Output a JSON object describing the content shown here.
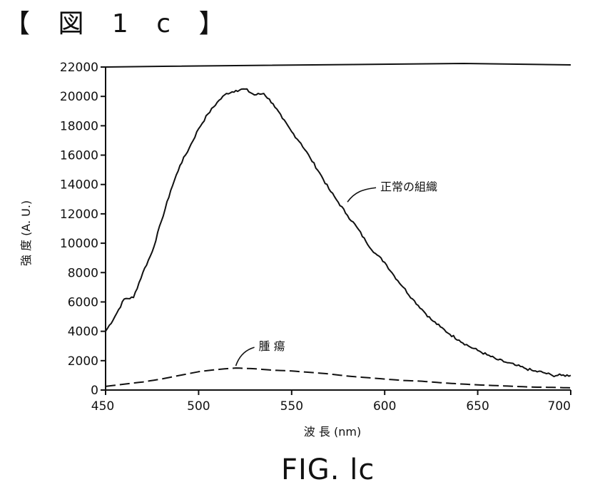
{
  "figure_heading": "【 図 1 c 】",
  "figure_caption": "FIG. lc",
  "chart_data": {
    "type": "line",
    "xlabel": "波 長 (nm)",
    "ylabel": "強 度 (A. U.)",
    "xlim": [
      450,
      700
    ],
    "ylim": [
      0,
      22000
    ],
    "x_ticks": [
      450,
      500,
      550,
      600,
      650,
      700
    ],
    "y_ticks": [
      0,
      2000,
      4000,
      6000,
      8000,
      10000,
      12000,
      14000,
      16000,
      18000,
      20000,
      22000
    ],
    "grid": false,
    "legend": "none",
    "series": [
      {
        "name": "正常の組織",
        "style": "solid",
        "x": [
          450,
          455,
          460,
          465,
          470,
          475,
          480,
          485,
          490,
          495,
          500,
          505,
          510,
          515,
          520,
          525,
          530,
          535,
          540,
          545,
          550,
          555,
          560,
          565,
          570,
          575,
          580,
          585,
          590,
          595,
          600,
          605,
          610,
          615,
          620,
          625,
          630,
          635,
          640,
          645,
          650,
          655,
          660,
          665,
          670,
          675,
          680,
          685,
          690,
          695,
          700
        ],
        "y": [
          4000,
          5000,
          6200,
          6300,
          8000,
          9400,
          11500,
          13600,
          15300,
          16500,
          17800,
          18800,
          19600,
          20200,
          20400,
          20500,
          20100,
          20200,
          19500,
          18500,
          17600,
          16800,
          15800,
          14800,
          13700,
          12800,
          11900,
          11100,
          10100,
          9300,
          8700,
          7800,
          7000,
          6200,
          5500,
          4800,
          4300,
          3800,
          3400,
          3000,
          2700,
          2400,
          2100,
          1900,
          1700,
          1500,
          1300,
          1200,
          1000,
          1000,
          1000
        ]
      },
      {
        "name": "腫瘍",
        "style": "dashed",
        "x": [
          450,
          460,
          470,
          480,
          490,
          500,
          510,
          520,
          530,
          540,
          550,
          560,
          570,
          580,
          590,
          600,
          610,
          620,
          630,
          640,
          650,
          660,
          670,
          680,
          690,
          700
        ],
        "y": [
          250,
          400,
          550,
          750,
          1000,
          1250,
          1400,
          1500,
          1450,
          1350,
          1300,
          1200,
          1100,
          950,
          850,
          750,
          650,
          600,
          500,
          420,
          350,
          300,
          250,
          200,
          180,
          150
        ]
      }
    ],
    "annotations": [
      {
        "label": "正常の組織",
        "series": "正常の組織",
        "x": 580,
        "y": 13100
      },
      {
        "label": "腫 瘍",
        "series": "腫瘍",
        "x": 520,
        "y": 1550
      }
    ]
  }
}
